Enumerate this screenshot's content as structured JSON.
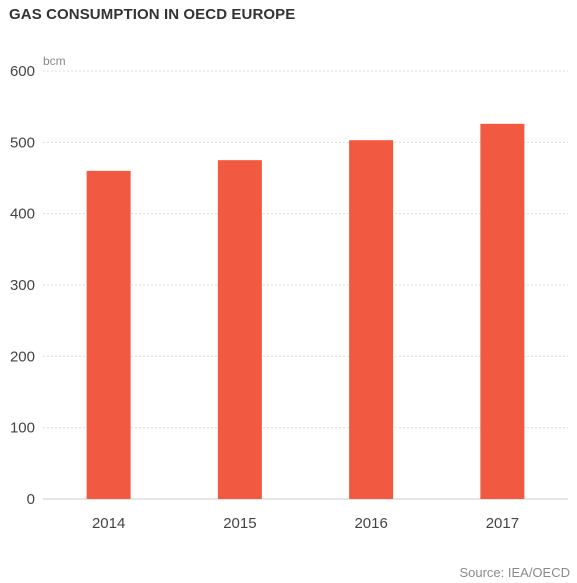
{
  "chart_data": {
    "type": "bar",
    "title": "GAS CONSUMPTION IN OECD EUROPE",
    "unit_label": "bcm",
    "categories": [
      "2014",
      "2015",
      "2016",
      "2017"
    ],
    "values": [
      460,
      475,
      503,
      526
    ],
    "ylim": [
      0,
      600
    ],
    "yticks": [
      0,
      100,
      200,
      300,
      400,
      500,
      600
    ],
    "grid": true,
    "bar_color": "#f15a40",
    "source": "Source: IEA/OECD"
  }
}
